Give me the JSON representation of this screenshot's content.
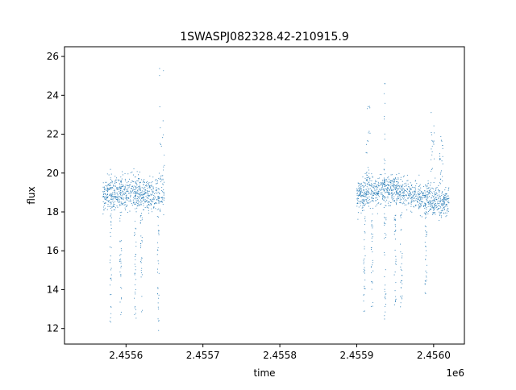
{
  "chart_data": {
    "type": "scatter",
    "title": "1SWASPJ082328.42-210915.9",
    "xlabel": "time",
    "ylabel": "flux",
    "x_offset_label": "1e6",
    "xlim": [
      2.45552,
      2.45604
    ],
    "ylim": [
      11.2,
      26.5
    ],
    "x_ticks": [
      2.4556,
      2.4557,
      2.4558,
      2.4559,
      2.456
    ],
    "x_tick_labels": [
      "2.4556",
      "2.4557",
      "2.4558",
      "2.4559",
      "2.4560"
    ],
    "y_ticks": [
      12,
      14,
      16,
      18,
      20,
      22,
      24,
      26
    ],
    "y_tick_labels": [
      "12",
      "14",
      "16",
      "18",
      "20",
      "22",
      "24",
      "26"
    ],
    "grid": false,
    "marker_color": "#1f77b4",
    "series": [
      {
        "segments": [
          {
            "x_start": 2.45557,
            "x_end": 2.45565,
            "baseline": 18.8,
            "scatter": 0.45,
            "trend": 0.2
          },
          {
            "x_start": 2.4559,
            "x_end": 2.45602,
            "baseline": 18.8,
            "scatter": 0.4,
            "trend": 0.3
          }
        ],
        "dips": [
          {
            "x": 2.45558,
            "min": 12.3
          },
          {
            "x": 2.455593,
            "min": 12.6
          },
          {
            "x": 2.455612,
            "min": 12.5
          },
          {
            "x": 2.45562,
            "min": 12.8
          },
          {
            "x": 2.455642,
            "min": 11.8
          },
          {
            "x": 2.45591,
            "min": 12.7
          },
          {
            "x": 2.45592,
            "min": 12.3
          },
          {
            "x": 2.455937,
            "min": 12.4
          },
          {
            "x": 2.45595,
            "min": 12.6
          },
          {
            "x": 2.455958,
            "min": 13.0
          },
          {
            "x": 2.45599,
            "min": 13.7
          }
        ],
        "flares": [
          {
            "x_start": 2.455643,
            "x_end": 2.45565,
            "max": 25.8
          },
          {
            "x_start": 2.455912,
            "x_end": 2.455918,
            "max": 23.5
          },
          {
            "x_start": 2.455935,
            "x_end": 2.455937,
            "max": 24.7
          },
          {
            "x_start": 2.455996,
            "x_end": 2.456002,
            "max": 23.4
          },
          {
            "x_start": 2.456007,
            "x_end": 2.456012,
            "max": 22.0
          }
        ]
      }
    ]
  }
}
